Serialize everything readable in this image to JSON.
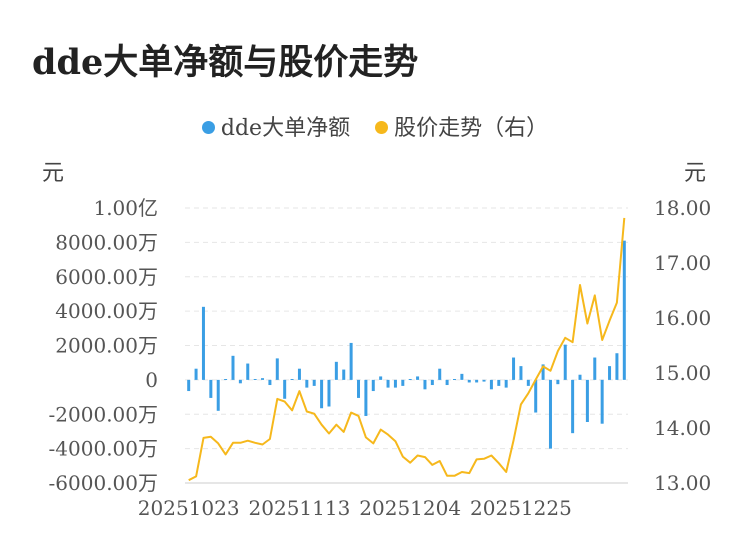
{
  "title": "dde大单净额与股价走势",
  "legend": {
    "series1": "dde大单净额",
    "series2": "股价走势（右）"
  },
  "units": {
    "left": "元",
    "right": "元"
  },
  "colors": {
    "bar": "#3a9ee4",
    "line": "#f6b81c",
    "grid": "#e6e6e6",
    "axis": "#cccccc"
  },
  "chart_data": {
    "type": "bar",
    "x_ticks": [
      "20251023",
      "20251113",
      "20251204",
      "20251225"
    ],
    "y_left": {
      "ticks": [
        "-6000.00万",
        "-4000.00万",
        "-2000.00万",
        "0",
        "2000.00万",
        "4000.00万",
        "6000.00万",
        "8000.00万",
        "1.00亿"
      ],
      "lim": [
        -6000,
        10000
      ],
      "unit": "万元"
    },
    "y_right": {
      "ticks": [
        "13.00",
        "14.00",
        "15.00",
        "16.00",
        "17.00",
        "18.00"
      ],
      "lim": [
        13,
        18
      ]
    },
    "series": [
      {
        "name": "dde大单净额",
        "type": "bar",
        "values": [
          -650,
          650,
          4250,
          -1050,
          -1800,
          50,
          1400,
          -200,
          950,
          50,
          100,
          -300,
          1250,
          -1100,
          50,
          650,
          -450,
          -350,
          -1650,
          -1550,
          1050,
          600,
          2150,
          -1050,
          -2100,
          -650,
          200,
          -450,
          -450,
          -350,
          50,
          200,
          -550,
          -300,
          650,
          -300,
          50,
          350,
          -150,
          -150,
          -100,
          -550,
          -350,
          -450,
          1300,
          800,
          -350,
          -1900,
          900,
          -4000,
          -250,
          2050,
          -3100,
          300,
          -2450,
          1300,
          -2550,
          800,
          1550,
          8100
        ]
      },
      {
        "name": "股价走势（右）",
        "type": "line",
        "values": [
          13.05,
          13.12,
          13.82,
          13.84,
          13.72,
          13.52,
          13.73,
          13.73,
          13.77,
          13.73,
          13.7,
          13.8,
          14.53,
          14.48,
          14.32,
          14.67,
          14.3,
          14.26,
          14.06,
          13.9,
          14.06,
          13.93,
          14.28,
          14.22,
          13.83,
          13.72,
          13.97,
          13.88,
          13.76,
          13.48,
          13.37,
          13.5,
          13.47,
          13.33,
          13.4,
          13.13,
          13.13,
          13.2,
          13.18,
          13.43,
          13.44,
          13.5,
          13.36,
          13.2,
          13.78,
          14.43,
          14.63,
          14.88,
          15.12,
          15.04,
          15.4,
          15.64,
          15.56,
          16.6,
          15.9,
          16.41,
          15.6,
          15.95,
          16.28,
          17.82
        ]
      }
    ],
    "grid": true
  }
}
